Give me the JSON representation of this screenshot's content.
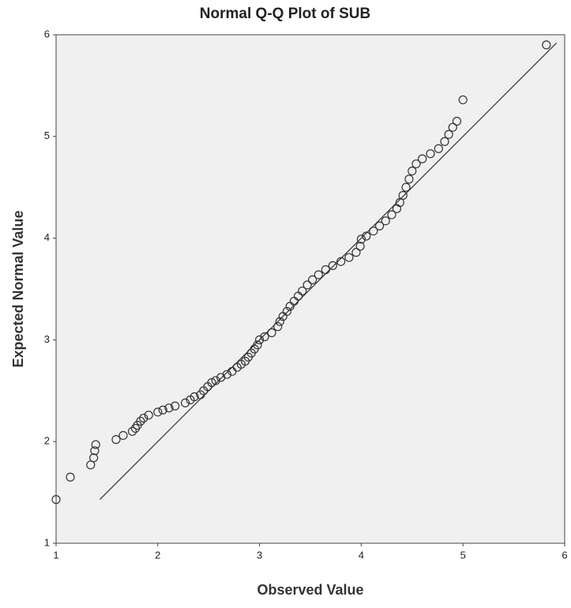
{
  "chart_data": {
    "type": "scatter",
    "title": "Normal Q-Q Plot of SUB",
    "x_label": "Observed Value",
    "y_label": "Expected Normal Value",
    "xlim": [
      1,
      6
    ],
    "ylim": [
      1,
      6
    ],
    "xticks": [
      1,
      2,
      3,
      4,
      5,
      6
    ],
    "yticks": [
      1,
      2,
      3,
      4,
      5,
      6
    ],
    "color": "#333333",
    "x": [
      1.0,
      1.14,
      1.34,
      1.37,
      1.38,
      1.39,
      1.59,
      1.66,
      1.75,
      1.78,
      1.8,
      1.83,
      1.86,
      1.91,
      2.0,
      2.05,
      2.11,
      2.17,
      2.27,
      2.32,
      2.36,
      2.42,
      2.45,
      2.49,
      2.53,
      2.57,
      2.62,
      2.68,
      2.73,
      2.78,
      2.82,
      2.86,
      2.89,
      2.92,
      2.95,
      2.98,
      3.0,
      3.05,
      3.12,
      3.18,
      3.2,
      3.23,
      3.27,
      3.3,
      3.34,
      3.38,
      3.42,
      3.47,
      3.52,
      3.58,
      3.65,
      3.72,
      3.8,
      3.88,
      3.95,
      3.99,
      4.0,
      4.05,
      4.12,
      4.18,
      4.24,
      4.3,
      4.35,
      4.38,
      4.41,
      4.44,
      4.47,
      4.5,
      4.54,
      4.6,
      4.68,
      4.76,
      4.82,
      4.86,
      4.9,
      4.94,
      5.0,
      5.82
    ],
    "values": [
      1.43,
      1.65,
      1.77,
      1.84,
      1.91,
      1.97,
      2.02,
      2.06,
      2.1,
      2.13,
      2.16,
      2.2,
      2.23,
      2.26,
      2.29,
      2.31,
      2.33,
      2.35,
      2.38,
      2.41,
      2.44,
      2.46,
      2.5,
      2.54,
      2.58,
      2.6,
      2.63,
      2.66,
      2.69,
      2.73,
      2.76,
      2.79,
      2.83,
      2.87,
      2.91,
      2.95,
      3.0,
      3.03,
      3.07,
      3.13,
      3.18,
      3.23,
      3.28,
      3.33,
      3.38,
      3.43,
      3.48,
      3.54,
      3.59,
      3.64,
      3.69,
      3.73,
      3.77,
      3.81,
      3.86,
      3.92,
      3.99,
      4.02,
      4.07,
      4.12,
      4.17,
      4.23,
      4.29,
      4.35,
      4.42,
      4.5,
      4.58,
      4.66,
      4.73,
      4.78,
      4.83,
      4.88,
      4.95,
      5.02,
      5.09,
      5.15,
      5.36,
      5.9
    ],
    "reference_line": {
      "x": [
        1.43,
        5.92
      ],
      "y": [
        1.43,
        5.92
      ]
    }
  }
}
